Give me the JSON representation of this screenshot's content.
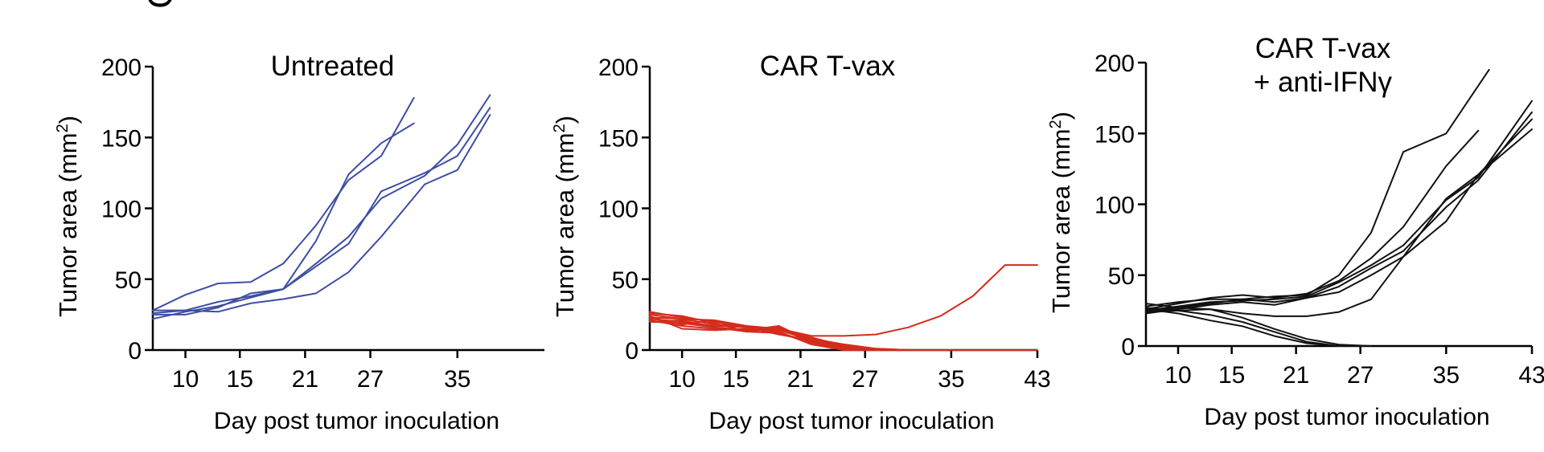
{
  "panel_letter": "C",
  "chart_data": [
    {
      "type": "line",
      "title": "Untreated",
      "xlabel": "Day post tumor inoculation",
      "ylabel": "Tumor area (mm²)",
      "ylabel_main": "Tumor area (mm",
      "ylabel_sup": "2",
      "ylabel_close": ")",
      "xticks": [
        10,
        15,
        21,
        27,
        35
      ],
      "yticks": [
        0,
        50,
        100,
        150,
        200
      ],
      "xlim": [
        7,
        43
      ],
      "ylim": [
        0,
        200
      ],
      "color": "#3d4ea3",
      "grid": false,
      "series": [
        {
          "x": [
            7,
            10,
            13,
            16,
            19,
            22,
            25,
            28,
            31
          ],
          "y": [
            28,
            39,
            47,
            48,
            61,
            88,
            120,
            137,
            178
          ]
        },
        {
          "x": [
            7,
            10,
            13,
            16,
            19,
            22,
            25,
            28,
            31
          ],
          "y": [
            26,
            28,
            34,
            38,
            43,
            77,
            124,
            146,
            160
          ]
        },
        {
          "x": [
            7,
            10,
            13,
            16,
            19,
            22,
            25,
            28,
            32,
            35,
            38
          ],
          "y": [
            22,
            27,
            31,
            37,
            43,
            61,
            80,
            107,
            123,
            145,
            180
          ]
        },
        {
          "x": [
            7,
            10,
            13,
            16,
            19,
            22,
            25,
            28,
            32,
            35,
            38
          ],
          "y": [
            25,
            25,
            30,
            40,
            43,
            59,
            75,
            112,
            125,
            137,
            171
          ]
        },
        {
          "x": [
            7,
            10,
            13,
            16,
            19,
            22,
            25,
            28,
            32,
            35,
            38
          ],
          "y": [
            28,
            28,
            27,
            33,
            36,
            40,
            55,
            80,
            117,
            127,
            166
          ]
        }
      ]
    },
    {
      "type": "line",
      "title": "CAR T-vax",
      "xlabel": "Day post tumor inoculation",
      "ylabel": "Tumor area (mm²)",
      "ylabel_main": "Tumor area (mm",
      "ylabel_sup": "2",
      "ylabel_close": ")",
      "xticks": [
        10,
        15,
        21,
        27,
        35,
        43
      ],
      "yticks": [
        0,
        50,
        100,
        150,
        200
      ],
      "xlim": [
        7,
        43
      ],
      "ylim": [
        0,
        200
      ],
      "color": "#d42c1c",
      "grid": false,
      "series": [
        {
          "x": [
            7,
            10,
            13,
            16,
            19,
            22,
            25,
            28,
            31,
            34,
            37,
            40,
            43
          ],
          "y": [
            23,
            22,
            21,
            17,
            15,
            10,
            10,
            11,
            16,
            24,
            38,
            60,
            60
          ]
        },
        {
          "x": [
            7,
            10,
            13,
            16,
            19,
            22,
            25,
            28,
            31
          ],
          "y": [
            27,
            23,
            20,
            16,
            14,
            7,
            3,
            0,
            0
          ]
        },
        {
          "x": [
            7,
            10,
            13,
            16,
            19,
            22,
            25,
            28,
            31
          ],
          "y": [
            25,
            22,
            18,
            17,
            12,
            6,
            2,
            0,
            0
          ]
        },
        {
          "x": [
            7,
            10,
            13,
            16,
            19,
            22,
            25,
            28,
            31
          ],
          "y": [
            21,
            17,
            15,
            14,
            16,
            5,
            1,
            0,
            0
          ]
        },
        {
          "x": [
            7,
            10,
            13,
            16,
            19,
            22,
            25,
            28,
            31
          ],
          "y": [
            20,
            19,
            16,
            13,
            15,
            8,
            4,
            1,
            0
          ]
        },
        {
          "x": [
            7,
            10,
            13,
            16,
            19,
            22,
            25,
            28,
            31
          ],
          "y": [
            24,
            15,
            14,
            15,
            13,
            4,
            0,
            0,
            0
          ]
        },
        {
          "x": [
            7,
            10,
            13,
            16,
            19,
            22,
            25,
            28,
            31
          ],
          "y": [
            22,
            20,
            17,
            16,
            11,
            7,
            2,
            0,
            0
          ]
        },
        {
          "x": [
            7,
            10,
            13,
            16,
            19,
            22,
            25,
            28,
            31
          ],
          "y": [
            26,
            24,
            19,
            13,
            12,
            5,
            1,
            0,
            0
          ]
        },
        {
          "x": [
            7,
            10,
            13,
            16,
            19,
            22,
            25,
            28,
            31,
            34
          ],
          "y": [
            23,
            18,
            21,
            16,
            14,
            9,
            3,
            1,
            0,
            0
          ]
        },
        {
          "x": [
            7,
            10,
            13,
            16,
            19,
            22,
            25,
            28,
            31,
            34,
            37,
            40,
            43
          ],
          "y": [
            20,
            21,
            16,
            14,
            17,
            6,
            2,
            0,
            0,
            0,
            0,
            0,
            0
          ]
        }
      ]
    },
    {
      "type": "line",
      "title": "CAR T-vax",
      "title_line2": "+ anti-IFNγ",
      "xlabel": "Day post tumor inoculation",
      "ylabel": "Tumor area (mm²)",
      "ylabel_main": "Tumor area (mm",
      "ylabel_sup": "2",
      "ylabel_close": ")",
      "xticks": [
        10,
        15,
        21,
        27,
        35,
        43
      ],
      "yticks": [
        0,
        50,
        100,
        150,
        200
      ],
      "xlim": [
        7,
        43
      ],
      "ylim": [
        0,
        200
      ],
      "color": "#111111",
      "grid": false,
      "series": [
        {
          "x": [
            7,
            10,
            13,
            16,
            19,
            22,
            25,
            28,
            31,
            35,
            39
          ],
          "y": [
            28,
            31,
            33,
            33,
            35,
            36,
            50,
            80,
            137,
            150,
            195
          ]
        },
        {
          "x": [
            7,
            10,
            13,
            16,
            19,
            22,
            25,
            28,
            31,
            35,
            38
          ],
          "y": [
            26,
            30,
            34,
            36,
            34,
            37,
            46,
            62,
            84,
            127,
            152
          ]
        },
        {
          "x": [
            7,
            10,
            13,
            16,
            19,
            22,
            25,
            28,
            31,
            35,
            38,
            43
          ],
          "y": [
            25,
            28,
            31,
            32,
            33,
            35,
            45,
            57,
            71,
            103,
            119,
            173
          ]
        },
        {
          "x": [
            7,
            10,
            13,
            16,
            19,
            22,
            25,
            28,
            31,
            35,
            38,
            43
          ],
          "y": [
            24,
            27,
            30,
            33,
            31,
            34,
            42,
            55,
            67,
            98,
            117,
            165
          ]
        },
        {
          "x": [
            7,
            10,
            13,
            16,
            19,
            22,
            25,
            28,
            31,
            35,
            38,
            43
          ],
          "y": [
            23,
            26,
            29,
            31,
            29,
            34,
            38,
            50,
            63,
            88,
            121,
            160
          ]
        },
        {
          "x": [
            7,
            10,
            13,
            16,
            19,
            22,
            25,
            28,
            31,
            35,
            38,
            43
          ],
          "y": [
            27,
            25,
            26,
            23,
            21,
            21,
            24,
            33,
            63,
            104,
            121,
            153
          ]
        },
        {
          "x": [
            7,
            10,
            13,
            16,
            19,
            22,
            25,
            28
          ],
          "y": [
            30,
            27,
            26,
            20,
            12,
            5,
            1,
            0
          ]
        },
        {
          "x": [
            7,
            10,
            13,
            16,
            19,
            22,
            25,
            28
          ],
          "y": [
            24,
            25,
            22,
            17,
            10,
            3,
            0,
            0
          ]
        },
        {
          "x": [
            7,
            10,
            13,
            16,
            19,
            22,
            25,
            28
          ],
          "y": [
            26,
            23,
            18,
            14,
            7,
            2,
            0,
            0
          ]
        }
      ]
    }
  ]
}
